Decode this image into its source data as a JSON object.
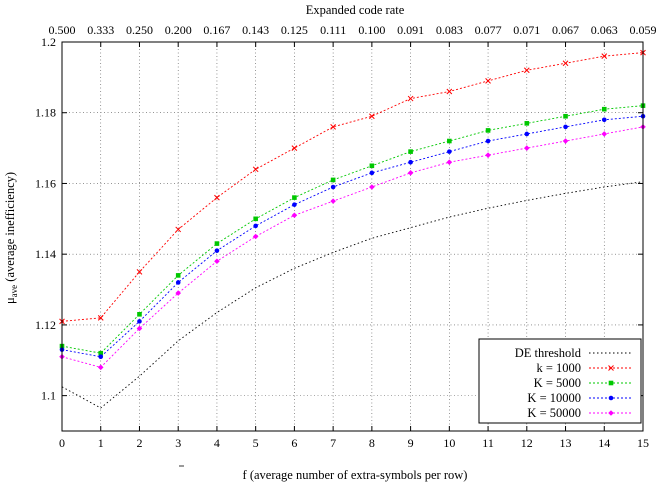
{
  "chart_data": {
    "type": "line",
    "title": "",
    "xlabel_prefix": "f",
    "xlabel_rest": " (average number of extra-symbols per row)",
    "ylabel_mu": "μ",
    "ylabel_sub": "ave",
    "ylabel_rest": " (average inefficiency)",
    "x2label": "Expanded code rate",
    "x": [
      0,
      1,
      2,
      3,
      4,
      5,
      6,
      7,
      8,
      9,
      10,
      11,
      12,
      13,
      14,
      15
    ],
    "xlim": [
      0,
      15
    ],
    "ylim": [
      1.09,
      1.2
    ],
    "yticks": [
      1.1,
      1.12,
      1.14,
      1.16,
      1.18,
      1.2
    ],
    "ytick_labels": [
      "1.1",
      "1.12",
      "1.14",
      "1.16",
      "1.18",
      "1.2"
    ],
    "xtick_labels": [
      "0",
      "1",
      "2",
      "3",
      "4",
      "5",
      "6",
      "7",
      "8",
      "9",
      "10",
      "11",
      "12",
      "13",
      "14",
      "15"
    ],
    "x2tick_labels": [
      "0.500",
      "0.333",
      "0.250",
      "0.200",
      "0.167",
      "0.143",
      "0.125",
      "0.111",
      "0.100",
      "0.091",
      "0.083",
      "0.077",
      "0.071",
      "0.067",
      "0.063",
      "0.059"
    ],
    "grid": true,
    "legend_position": "bottom-right",
    "series": [
      {
        "name": "DE threshold",
        "color": "#000000",
        "marker": "none",
        "dash": "1.5,2.5",
        "values": [
          1.1025,
          1.0965,
          1.1055,
          1.1155,
          1.1235,
          1.1305,
          1.136,
          1.1405,
          1.1445,
          1.1475,
          1.1505,
          1.153,
          1.1552,
          1.1572,
          1.159,
          1.1605
        ]
      },
      {
        "name": "k = 1000",
        "color": "#ff0000",
        "marker": "x",
        "dash": "2,2",
        "values": [
          1.121,
          1.122,
          1.135,
          1.147,
          1.156,
          1.164,
          1.17,
          1.176,
          1.179,
          1.184,
          1.186,
          1.189,
          1.192,
          1.194,
          1.196,
          1.197
        ]
      },
      {
        "name": "K = 5000",
        "color": "#00c800",
        "marker": "square",
        "dash": "2,2",
        "values": [
          1.114,
          1.112,
          1.123,
          1.134,
          1.143,
          1.15,
          1.156,
          1.161,
          1.165,
          1.169,
          1.172,
          1.175,
          1.177,
          1.179,
          1.181,
          1.182
        ]
      },
      {
        "name": "K = 10000",
        "color": "#0000ff",
        "marker": "dot",
        "dash": "2,2",
        "values": [
          1.113,
          1.111,
          1.121,
          1.132,
          1.141,
          1.148,
          1.154,
          1.159,
          1.163,
          1.166,
          1.169,
          1.172,
          1.174,
          1.176,
          1.178,
          1.179
        ]
      },
      {
        "name": "K = 50000",
        "color": "#ff00ff",
        "marker": "diamond",
        "dash": "2,2",
        "values": [
          1.111,
          1.108,
          1.119,
          1.129,
          1.138,
          1.145,
          1.151,
          1.155,
          1.159,
          1.163,
          1.166,
          1.168,
          1.17,
          1.172,
          1.174,
          1.176
        ]
      }
    ]
  }
}
